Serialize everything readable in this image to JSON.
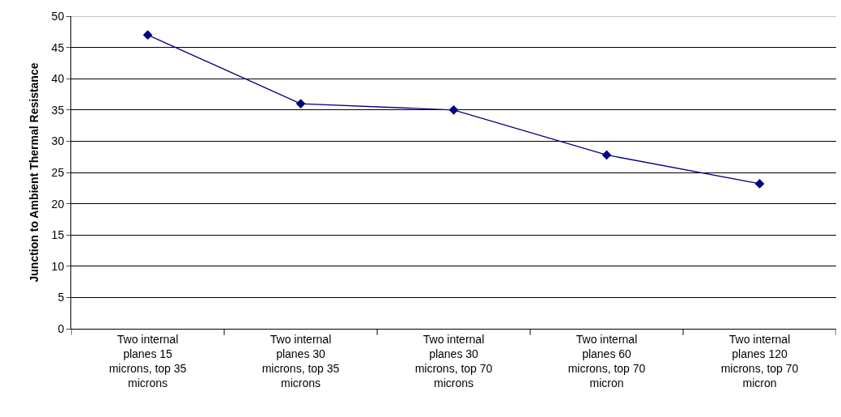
{
  "chart_data": {
    "type": "line",
    "ylabel": "Junction to Ambient Thermal Resistance",
    "categories": [
      "Two internal planes 15 microns, top 35 microns",
      "Two internal planes 30 microns, top 35 microns",
      "Two internal planes 30 microns, top 70 microns",
      "Two internal planes 60 microns, top 70 micron",
      "Two internal planes 120 microns, top 70 micron"
    ],
    "series": [
      {
        "color": "#000080",
        "values": [
          47,
          36,
          35,
          27.8,
          23.2
        ]
      }
    ],
    "ylim": [
      0,
      50
    ],
    "yticks": [
      0,
      5,
      10,
      15,
      20,
      25,
      30,
      35,
      40,
      45,
      50
    ],
    "grid": "y",
    "marker": "diamond",
    "line_style": "solid"
  }
}
